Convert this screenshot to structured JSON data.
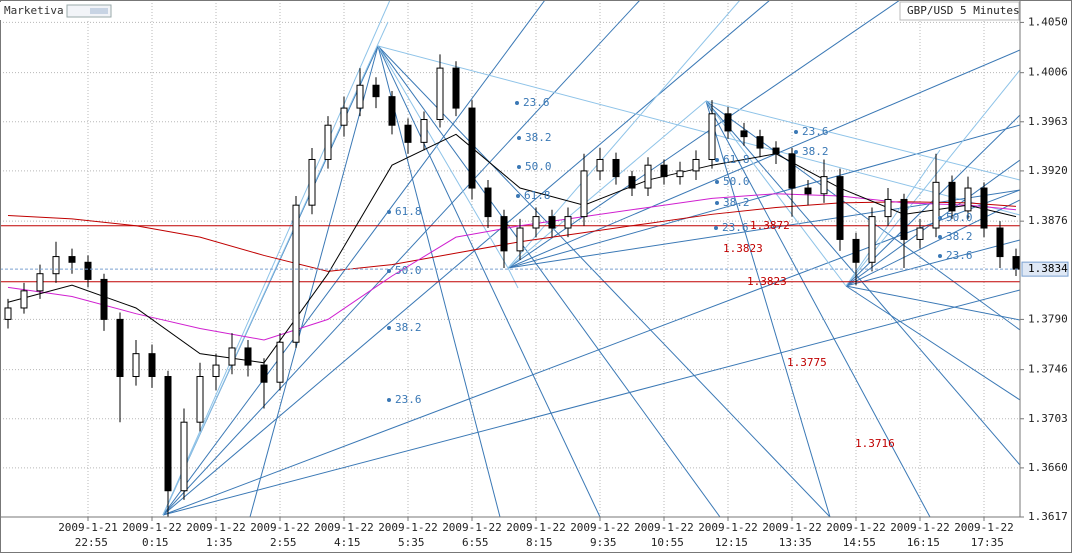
{
  "app": {
    "name": "Marketiva"
  },
  "chart_data": {
    "type": "candlestick",
    "title": "GBP/USD",
    "subtitle": "5 Minutes",
    "ylim": [
      1.3617,
      1.4067
    ],
    "yticks": [
      {
        "value": 1.405,
        "label": "1.4050"
      },
      1.4006,
      1.3963,
      {
        "value": 1.392,
        "label": "1.3920"
      },
      1.3876,
      {
        "value": 1.379,
        "label": "1.3790"
      },
      1.3746,
      1.3703,
      {
        "value": 1.366,
        "label": "1.3660"
      },
      1.3617
    ],
    "grid": true,
    "up_color": "#ffffff",
    "down_color": "#000000",
    "categories": [
      null,
      null,
      null,
      null,
      null,
      "2009-1-21 22:55",
      null,
      null,
      null,
      "2009-1-22 0:15",
      null,
      null,
      null,
      "2009-1-22 1:35",
      null,
      null,
      null,
      "2009-1-22 2:55",
      null,
      null,
      null,
      "2009-1-22 4:15",
      null,
      null,
      null,
      "2009-1-22 5:35",
      null,
      null,
      null,
      "2009-1-22 6:55",
      null,
      null,
      null,
      "2009-1-22 8:15",
      null,
      null,
      null,
      "2009-1-22 9:35",
      null,
      null,
      null,
      "2009-1-22 10:55",
      null,
      null,
      null,
      "2009-1-22 12:15",
      null,
      null,
      null,
      "2009-1-22 13:35",
      null,
      null,
      null,
      "2009-1-22 14:55",
      null,
      null,
      null,
      "2009-1-22 16:15",
      null,
      null,
      null,
      "2009-1-22 17:35",
      null,
      null
    ],
    "ohlc": [
      [
        1.379,
        1.3808,
        1.3782,
        1.38
      ],
      [
        1.38,
        1.3822,
        1.3795,
        1.3815
      ],
      [
        1.3815,
        1.3838,
        1.3808,
        1.383
      ],
      [
        1.383,
        1.3858,
        1.3822,
        1.3845
      ],
      [
        1.3845,
        1.3852,
        1.383,
        1.384
      ],
      [
        1.384,
        1.3846,
        1.3818,
        1.3825
      ],
      [
        1.3825,
        1.383,
        1.378,
        1.379
      ],
      [
        1.379,
        1.3796,
        1.37,
        1.374
      ],
      [
        1.374,
        1.3772,
        1.3732,
        1.376
      ],
      [
        1.376,
        1.3768,
        1.373,
        1.374
      ],
      [
        1.374,
        1.3745,
        1.3617,
        1.364
      ],
      [
        1.364,
        1.3712,
        1.3632,
        1.37
      ],
      [
        1.37,
        1.3752,
        1.3692,
        1.374
      ],
      [
        1.374,
        1.376,
        1.3728,
        1.375
      ],
      [
        1.375,
        1.3778,
        1.3742,
        1.3765
      ],
      [
        1.3765,
        1.3772,
        1.374,
        1.375
      ],
      [
        1.375,
        1.3756,
        1.3712,
        1.3735
      ],
      [
        1.3735,
        1.3778,
        1.3728,
        1.377
      ],
      [
        1.377,
        1.3898,
        1.3765,
        1.389
      ],
      [
        1.389,
        1.394,
        1.3882,
        1.393
      ],
      [
        1.393,
        1.3968,
        1.3922,
        1.396
      ],
      [
        1.396,
        1.3985,
        1.395,
        1.3975
      ],
      [
        1.3975,
        1.401,
        1.3968,
        1.3995
      ],
      [
        1.3995,
        1.4002,
        1.3975,
        1.3985
      ],
      [
        1.3985,
        1.399,
        1.3952,
        1.396
      ],
      [
        1.396,
        1.3966,
        1.3935,
        1.3945
      ],
      [
        1.3945,
        1.3972,
        1.3938,
        1.3965
      ],
      [
        1.3965,
        1.4022,
        1.3958,
        1.401
      ],
      [
        1.401,
        1.4016,
        1.3968,
        1.3975
      ],
      [
        1.3975,
        1.3982,
        1.3895,
        1.3905
      ],
      [
        1.3905,
        1.3912,
        1.387,
        1.388
      ],
      [
        1.388,
        1.3886,
        1.3835,
        1.385
      ],
      [
        1.385,
        1.3878,
        1.3842,
        1.387
      ],
      [
        1.387,
        1.3888,
        1.3862,
        1.388
      ],
      [
        1.388,
        1.3886,
        1.3862,
        1.387
      ],
      [
        1.387,
        1.3888,
        1.3862,
        1.388
      ],
      [
        1.388,
        1.3935,
        1.3872,
        1.392
      ],
      [
        1.392,
        1.394,
        1.3912,
        1.393
      ],
      [
        1.393,
        1.3936,
        1.3908,
        1.3915
      ],
      [
        1.3915,
        1.392,
        1.3898,
        1.3905
      ],
      [
        1.3905,
        1.3932,
        1.3898,
        1.3925
      ],
      [
        1.3925,
        1.393,
        1.3908,
        1.3915
      ],
      [
        1.3915,
        1.3928,
        1.3908,
        1.392
      ],
      [
        1.392,
        1.3938,
        1.3912,
        1.393
      ],
      [
        1.393,
        1.3982,
        1.3922,
        1.397
      ],
      [
        1.397,
        1.3976,
        1.3948,
        1.3955
      ],
      [
        1.3955,
        1.3962,
        1.3942,
        1.395
      ],
      [
        1.395,
        1.3956,
        1.3932,
        1.394
      ],
      [
        1.394,
        1.3946,
        1.3926,
        1.3935
      ],
      [
        1.3935,
        1.394,
        1.388,
        1.3905
      ],
      [
        1.3905,
        1.3912,
        1.389,
        1.39
      ],
      [
        1.39,
        1.393,
        1.3892,
        1.3915
      ],
      [
        1.3915,
        1.3922,
        1.385,
        1.386
      ],
      [
        1.386,
        1.3866,
        1.382,
        1.384
      ],
      [
        1.384,
        1.3888,
        1.3832,
        1.388
      ],
      [
        1.388,
        1.3905,
        1.3872,
        1.3895
      ],
      [
        1.3895,
        1.39,
        1.3835,
        1.386
      ],
      [
        1.386,
        1.3878,
        1.3852,
        1.387
      ],
      [
        1.387,
        1.3935,
        1.3862,
        1.391
      ],
      [
        1.391,
        1.3916,
        1.3878,
        1.3885
      ],
      [
        1.3885,
        1.3915,
        1.3878,
        1.3905
      ],
      [
        1.3905,
        1.391,
        1.3862,
        1.387
      ],
      [
        1.387,
        1.3876,
        1.3835,
        1.3845
      ],
      [
        1.3845,
        1.3852,
        1.3828,
        1.3834
      ]
    ],
    "lines": [
      {
        "color": "#c00000",
        "x": [
          0,
          4,
          8,
          12,
          16,
          20,
          24,
          28,
          32,
          36,
          40,
          44,
          48,
          52,
          56,
          60,
          63
        ],
        "values": [
          1.3881,
          1.3878,
          1.3872,
          1.3862,
          1.3846,
          1.3832,
          1.3838,
          1.3848,
          1.3858,
          1.3866,
          1.3874,
          1.3882,
          1.3888,
          1.3892,
          1.3893,
          1.3892,
          1.3889
        ]
      },
      {
        "color": "#d020d0",
        "x": [
          0,
          4,
          8,
          12,
          16,
          20,
          24,
          28,
          32,
          36,
          40,
          44,
          48,
          52,
          56,
          60,
          63
        ],
        "values": [
          1.3818,
          1.381,
          1.3795,
          1.3782,
          1.3772,
          1.379,
          1.3828,
          1.3862,
          1.3872,
          1.388,
          1.3888,
          1.3896,
          1.39,
          1.3898,
          1.3892,
          1.389,
          1.3886
        ]
      },
      {
        "color": "#000000",
        "x": [
          0,
          4,
          8,
          12,
          16,
          20,
          24,
          28,
          32,
          36,
          40,
          44,
          48,
          52,
          56,
          60,
          63
        ],
        "values": [
          1.3805,
          1.382,
          1.38,
          1.376,
          1.3752,
          1.383,
          1.3925,
          1.3952,
          1.3905,
          1.389,
          1.3912,
          1.3925,
          1.3935,
          1.3905,
          1.3882,
          1.389,
          1.388
        ]
      }
    ],
    "hlines": [
      {
        "value": 1.3872,
        "color": "#c00000"
      },
      {
        "value": 1.3823,
        "color": "#c00000"
      }
    ],
    "last_price": 1.3834,
    "fib_labels": [
      "23.6",
      "38.2",
      "50.0",
      "61.8",
      "61.8",
      "50.0",
      "38.2",
      "23.6",
      "23.6",
      "38.2",
      "61.8",
      "50.0",
      "38.2",
      "23.6",
      "50.0",
      "38.2",
      "23.6"
    ],
    "level_labels": [
      "1.3872",
      "1.3823",
      "1.3823",
      "1.3775",
      "1.3716"
    ]
  }
}
